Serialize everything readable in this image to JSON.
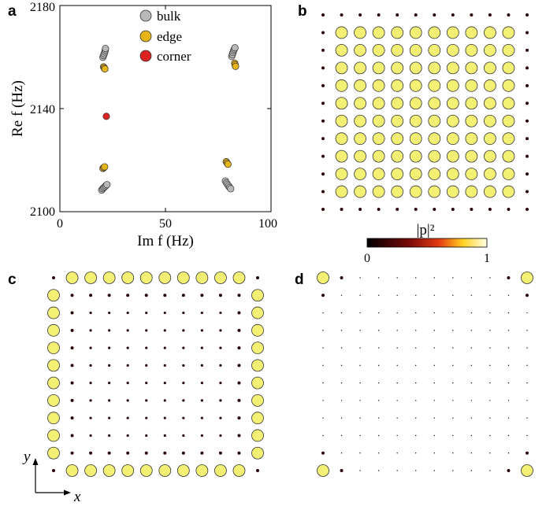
{
  "panel_labels": {
    "a": "a",
    "b": "b",
    "c": "c",
    "d": "d"
  },
  "colors": {
    "bulk": "#b8b8b8",
    "edge": "#e7b416",
    "corner": "#dd2222",
    "site_bright": "#f4f074",
    "site_dark": "#2a0508"
  },
  "chart_data": [
    {
      "type": "scatter",
      "panel": "a",
      "xlabel": "Im f (Hz)",
      "ylabel": "Re f (Hz)",
      "xlim": [
        0,
        100
      ],
      "ylim": [
        2100,
        2180
      ],
      "xticks": [
        "0",
        "50",
        "100"
      ],
      "yticks": [
        "2100",
        "2140",
        "2180"
      ],
      "legend_placement": "top-center",
      "series": [
        {
          "name": "bulk",
          "points": [
            [
              19.8,
              2108.4
            ],
            [
              20.3,
              2108.9
            ],
            [
              20.8,
              2109.3
            ],
            [
              21.3,
              2109.7
            ],
            [
              21.8,
              2110.1
            ],
            [
              22.3,
              2110.5
            ],
            [
              20.4,
              2159.9
            ],
            [
              20.7,
              2160.6
            ],
            [
              21.0,
              2161.3
            ],
            [
              21.3,
              2162.0
            ],
            [
              21.5,
              2162.7
            ],
            [
              21.6,
              2163.3
            ],
            [
              78.4,
              2111.9
            ],
            [
              78.9,
              2111.2
            ],
            [
              79.4,
              2110.6
            ],
            [
              79.9,
              2110.0
            ],
            [
              80.4,
              2109.4
            ],
            [
              80.9,
              2108.9
            ],
            [
              81.4,
              2160.2
            ],
            [
              81.7,
              2161.0
            ],
            [
              82.0,
              2161.8
            ],
            [
              82.3,
              2162.5
            ],
            [
              82.6,
              2163.1
            ],
            [
              82.9,
              2163.6
            ]
          ]
        },
        {
          "name": "edge",
          "points": [
            [
              20.4,
              2116.8
            ],
            [
              20.8,
              2117.1
            ],
            [
              21.2,
              2117.4
            ],
            [
              20.7,
              2156.2
            ],
            [
              21.0,
              2155.8
            ],
            [
              21.3,
              2155.4
            ],
            [
              78.8,
              2119.4
            ],
            [
              79.2,
              2118.9
            ],
            [
              79.6,
              2118.4
            ],
            [
              82.8,
              2157.6
            ],
            [
              83.0,
              2157.0
            ],
            [
              83.2,
              2156.4
            ]
          ]
        },
        {
          "name": "corner",
          "points": [
            [
              22.0,
              2137.0
            ]
          ]
        }
      ]
    },
    {
      "type": "heatmap",
      "panel": "b",
      "grid_size": [
        12,
        12
      ],
      "description_values": "|p|^2 mode amplitude, bulk mode",
      "pattern": "bulk"
    },
    {
      "type": "heatmap",
      "panel": "c",
      "grid_size": [
        12,
        12
      ],
      "pattern": "edge"
    },
    {
      "type": "heatmap",
      "panel": "d",
      "grid_size": [
        12,
        12
      ],
      "pattern": "corner"
    }
  ],
  "colorbar": {
    "label": "|p|²",
    "min_label": "0",
    "max_label": "1",
    "range": [
      0,
      1
    ]
  },
  "axes_indicator": {
    "y": "y",
    "x": "x"
  }
}
